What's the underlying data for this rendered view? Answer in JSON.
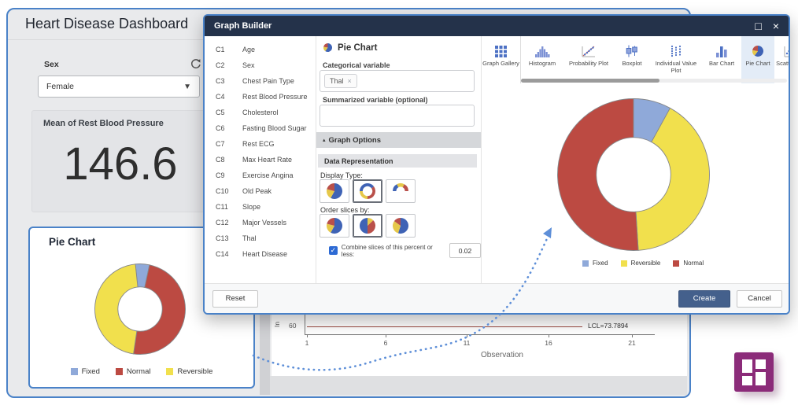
{
  "colors": {
    "accent_border": "#4a82c8",
    "titlebar": "#24324a",
    "create_button": "#44608c",
    "arrow": "#5e8fd8",
    "slice_fixed": "#8fa9d9",
    "slice_normal": "#bc4a42",
    "slice_reversible": "#f1e04d",
    "logo_purple": "#8b2b79"
  },
  "icons": {
    "refresh": "refresh-icon",
    "dropdown": "caret-down-icon",
    "maximize_glyph": "□",
    "close_glyph": "×",
    "collapse_glyph": "▴",
    "checkbox_check": "✓"
  },
  "dashboard": {
    "title": "Heart Disease Dashboard",
    "sex_label": "Sex",
    "sex_value": "Female",
    "metric": {
      "label": "Mean of Rest Blood Pressure",
      "value": "146.6"
    },
    "pie_card_title": "Pie Chart"
  },
  "background_chart": {
    "ylabel_partial": "In",
    "y_tick": "60",
    "x_ticks": [
      "1",
      "6",
      "11",
      "16",
      "21"
    ],
    "xlabel": "Observation",
    "lcl_label": "LCL=73.7894"
  },
  "dialog": {
    "title": "Graph Builder",
    "columns": [
      {
        "id": "C1",
        "name": "Age"
      },
      {
        "id": "C2",
        "name": "Sex"
      },
      {
        "id": "C3",
        "name": "Chest Pain Type"
      },
      {
        "id": "C4",
        "name": "Rest Blood Pressure"
      },
      {
        "id": "C5",
        "name": "Cholesterol"
      },
      {
        "id": "C6",
        "name": "Fasting Blood Sugar"
      },
      {
        "id": "C7",
        "name": "Rest ECG"
      },
      {
        "id": "C8",
        "name": "Max Heart Rate"
      },
      {
        "id": "C9",
        "name": "Exercise Angina"
      },
      {
        "id": "C10",
        "name": "Old Peak"
      },
      {
        "id": "C11",
        "name": "Slope"
      },
      {
        "id": "C12",
        "name": "Major Vessels"
      },
      {
        "id": "C13",
        "name": "Thal"
      },
      {
        "id": "C14",
        "name": "Heart Disease"
      }
    ],
    "panel": {
      "header": "Pie Chart",
      "categorical_label": "Categorical variable",
      "chip": "Thal",
      "chip_remove": "×",
      "summarized_label": "Summarized variable (optional)",
      "graph_options": "Graph Options",
      "data_representation": "Data Representation",
      "display_type": "Display Type:",
      "order_slices": "Order slices by:",
      "combine_label": "Combine slices of this percent or less:",
      "combine_value": "0.02"
    },
    "gallery": [
      {
        "label": "Graph Gallery",
        "icon": "graph-gallery-icon",
        "selected": false
      },
      {
        "label": "Histogram",
        "icon": "histogram-icon",
        "selected": false
      },
      {
        "label": "Probability Plot",
        "icon": "probability-plot-icon",
        "selected": false
      },
      {
        "label": "Boxplot",
        "icon": "boxplot-icon",
        "selected": false
      },
      {
        "label": "Individual Value Plot",
        "icon": "individual-value-plot-icon",
        "selected": false
      },
      {
        "label": "Bar Chart",
        "icon": "bar-chart-icon",
        "selected": false
      },
      {
        "label": "Pie Chart",
        "icon": "pie-chart-icon",
        "selected": true
      },
      {
        "label": "Scatterplot",
        "icon": "scatterplot-icon",
        "selected": false
      }
    ],
    "buttons": {
      "reset": "Reset",
      "create": "Create",
      "cancel": "Cancel"
    }
  },
  "chart_data": [
    {
      "type": "pie",
      "display": "donut",
      "title": "Pie Chart",
      "categories": [
        "Fixed",
        "Normal",
        "Reversible"
      ],
      "values": [
        5,
        49,
        46
      ],
      "colors": [
        "#8fa9d9",
        "#bc4a42",
        "#f1e04d"
      ],
      "start_angle": -6,
      "legend_position": "bottom"
    },
    {
      "type": "pie",
      "display": "donut",
      "title": "",
      "categories": [
        "Fixed",
        "Reversible",
        "Normal"
      ],
      "values": [
        8,
        41,
        51
      ],
      "colors": [
        "#8fa9d9",
        "#f1e04d",
        "#bc4a42"
      ],
      "start_angle": 0,
      "legend_position": "bottom"
    },
    {
      "type": "line",
      "title": "",
      "xlabel": "Observation",
      "x_ticks": [
        1,
        6,
        11,
        16,
        21
      ],
      "visible_y_ticks": [
        60
      ],
      "annotations": [
        "LCL=73.7894"
      ],
      "line_color": "#9a4a42"
    }
  ]
}
